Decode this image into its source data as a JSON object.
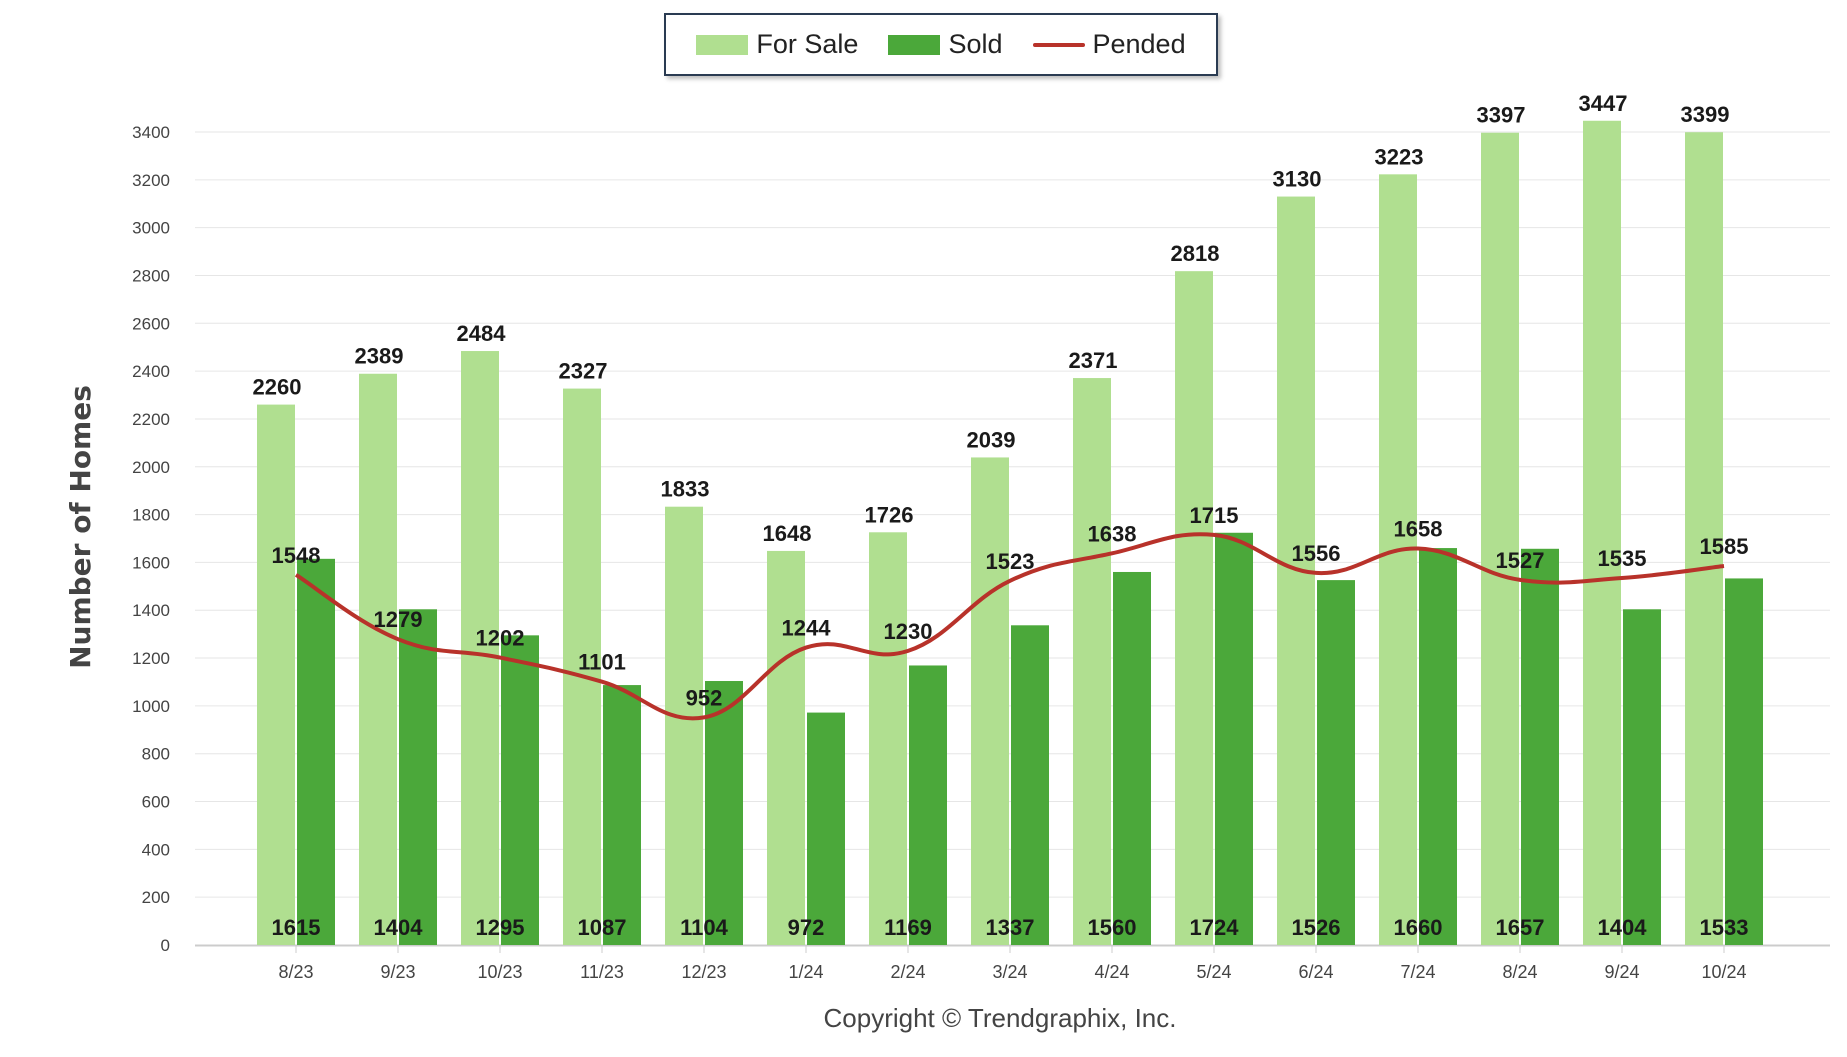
{
  "legend": {
    "items": [
      {
        "label": "For Sale",
        "color": "#b0df90",
        "kind": "bar"
      },
      {
        "label": "Sold",
        "color": "#4ba83a",
        "kind": "bar"
      },
      {
        "label": "Pended",
        "color": "#b8322a",
        "kind": "line"
      }
    ]
  },
  "copyright": "Copyright © Trendgraphix, Inc.",
  "chart_data": {
    "type": "bar",
    "ylabel": "Number of Homes",
    "xlabel": "",
    "ylim": [
      0,
      3400
    ],
    "yticks": [
      0,
      200,
      400,
      600,
      800,
      1000,
      1200,
      1400,
      1600,
      1800,
      2000,
      2200,
      2400,
      2600,
      2800,
      3000,
      3200,
      3400
    ],
    "grid": true,
    "legend_position": "top-center",
    "categories": [
      "8/23",
      "9/23",
      "10/23",
      "11/23",
      "12/23",
      "1/24",
      "2/24",
      "3/24",
      "4/24",
      "5/24",
      "6/24",
      "7/24",
      "8/24",
      "9/24",
      "10/24"
    ],
    "series": [
      {
        "name": "For Sale",
        "type": "bar",
        "color": "#b0df90",
        "values": [
          2260,
          2389,
          2484,
          2327,
          1833,
          1648,
          1726,
          2039,
          2371,
          2818,
          3130,
          3223,
          3397,
          3447,
          3399
        ]
      },
      {
        "name": "Sold",
        "type": "bar",
        "color": "#4ba83a",
        "values": [
          1615,
          1404,
          1295,
          1087,
          1104,
          972,
          1169,
          1337,
          1560,
          1724,
          1526,
          1660,
          1657,
          1404,
          1533
        ]
      },
      {
        "name": "Pended",
        "type": "line",
        "color": "#b8322a",
        "values": [
          1548,
          1279,
          1202,
          1101,
          952,
          1244,
          1230,
          1523,
          1638,
          1715,
          1556,
          1658,
          1527,
          1535,
          1585
        ]
      }
    ]
  }
}
